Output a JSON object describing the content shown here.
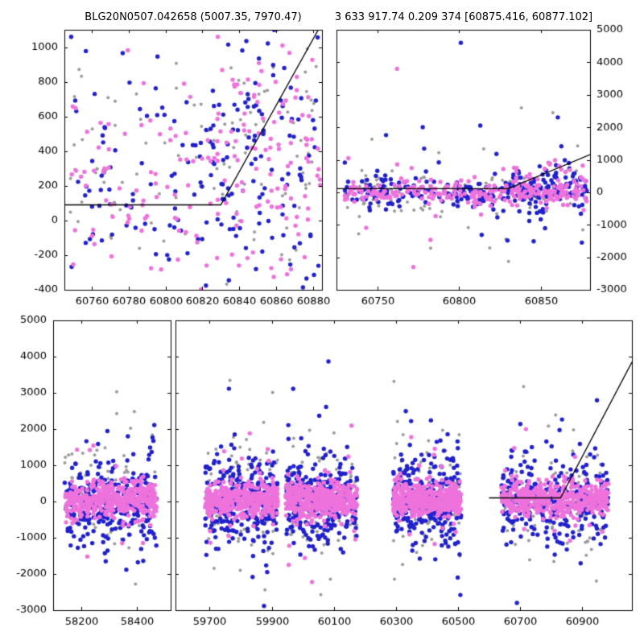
{
  "figure": {
    "background": "#ffffff",
    "colors": {
      "blue": "#2121cc",
      "pink": "#ee72dc",
      "gray": "#9b9b9b",
      "line": "#000000",
      "text": "#000000"
    }
  },
  "chart_data": [
    {
      "id": "top-left",
      "type": "scatter",
      "title": "BLG20N0507.042658 (5007.35, 7970.47)",
      "segments": [
        {
          "xlim": [
            60745,
            60885
          ],
          "xticks": [
            60760,
            60780,
            60800,
            60820,
            60840,
            60860,
            60880
          ]
        }
      ],
      "ylim": [
        -400,
        1100
      ],
      "yticks": [
        -400,
        -200,
        0,
        200,
        400,
        600,
        800,
        1000
      ],
      "yside": "left",
      "seed": 11,
      "clusters": [
        {
          "series": "blue",
          "x": [
            60748,
            60884
          ],
          "n": 150,
          "mean": 200,
          "sigma": 350
        },
        {
          "series": "blue",
          "x": [
            60825,
            60884
          ],
          "n": 45,
          "mean": 550,
          "sigma": 320
        },
        {
          "series": "pink",
          "x": [
            60748,
            60884
          ],
          "n": 150,
          "mean": 220,
          "sigma": 340
        },
        {
          "series": "pink",
          "x": [
            60828,
            60884
          ],
          "n": 45,
          "mean": 580,
          "sigma": 300
        },
        {
          "series": "gray",
          "x": [
            60748,
            60884
          ],
          "n": 85,
          "mean": 250,
          "sigma": 330
        },
        {
          "series": "gray",
          "x": [
            60828,
            60884
          ],
          "n": 22,
          "mean": 600,
          "sigma": 300
        }
      ],
      "outliers": [],
      "fit_line": [
        [
          60745,
          90
        ],
        [
          60830,
          90
        ],
        [
          60884,
          1120
        ]
      ]
    },
    {
      "id": "top-right",
      "type": "scatter",
      "title": "3 633 917.74 0.209 374 [60875.416, 60877.102]",
      "segments": [
        {
          "xlim": [
            60725,
            60880
          ],
          "xticks": [
            60750,
            60800,
            60850
          ]
        }
      ],
      "ylim": [
        -3000,
        5000
      ],
      "yticks": [
        -3000,
        -2000,
        -1000,
        0,
        1000,
        2000,
        3000,
        4000,
        5000
      ],
      "yside": "right",
      "seed": 7,
      "clusters": [
        {
          "series": "blue",
          "x": [
            60730,
            60878
          ],
          "n": 220,
          "mean": 0,
          "sigma": 280,
          "tail_frac": 0.13,
          "tail_sigma": 950
        },
        {
          "series": "pink",
          "x": [
            60730,
            60878
          ],
          "n": 220,
          "mean": 0,
          "sigma": 170,
          "tail_frac": 0.1,
          "tail_sigma": 650
        },
        {
          "series": "gray",
          "x": [
            60730,
            60878
          ],
          "n": 110,
          "mean": 50,
          "sigma": 380,
          "tail_frac": 0.16,
          "tail_sigma": 1100
        },
        {
          "series": "pink",
          "x": [
            60832,
            60878
          ],
          "n": 70,
          "mean": 250,
          "sigma": 260,
          "tail_frac": 0.05,
          "tail_sigma": 700
        },
        {
          "series": "blue",
          "x": [
            60832,
            60878
          ],
          "n": 70,
          "mean": 300,
          "sigma": 330,
          "tail_frac": 0.05,
          "tail_sigma": 800
        }
      ],
      "outliers": [
        {
          "series": "pink",
          "x": 60762,
          "y": 3800
        },
        {
          "series": "blue",
          "x": 60801,
          "y": 4600
        },
        {
          "series": "gray",
          "x": 60838,
          "y": 2600
        },
        {
          "series": "pink",
          "x": 60772,
          "y": -2300
        }
      ],
      "fit_line": [
        [
          60725,
          110
        ],
        [
          60830,
          110
        ],
        [
          60880,
          1160
        ]
      ]
    },
    {
      "id": "bottom",
      "type": "scatter",
      "title": "",
      "segments": [
        {
          "xlim": [
            58100,
            58520
          ],
          "xticks": [
            58200,
            58400
          ]
        },
        {
          "xlim": [
            59590,
            61060
          ],
          "xticks": [
            59700,
            59900,
            60100,
            60300,
            60500,
            60700,
            60900
          ]
        }
      ],
      "ylim": [
        -3000,
        5000
      ],
      "yticks": [
        -3000,
        -2000,
        -1000,
        0,
        1000,
        2000,
        3000,
        4000,
        5000
      ],
      "yside": "left",
      "seed": 1234,
      "clusters": [
        {
          "series": "pink",
          "x": [
            58140,
            58470
          ],
          "n": 450,
          "mean": 60,
          "sigma": 230,
          "tail_frac": 0.06,
          "tail_sigma": 850
        },
        {
          "series": "blue",
          "x": [
            58140,
            58470
          ],
          "n": 300,
          "mean": 0,
          "sigma": 560,
          "tail_frac": 0.15,
          "tail_sigma": 1300
        },
        {
          "series": "gray",
          "x": [
            58140,
            58470
          ],
          "n": 85,
          "mean": 100,
          "sigma": 720,
          "tail_frac": 0.18,
          "tail_sigma": 1500
        },
        {
          "series": "pink",
          "x": [
            59685,
            59920
          ],
          "n": 450,
          "mean": 60,
          "sigma": 230,
          "tail_frac": 0.06,
          "tail_sigma": 850
        },
        {
          "series": "blue",
          "x": [
            59685,
            59920
          ],
          "n": 300,
          "mean": 0,
          "sigma": 560,
          "tail_frac": 0.15,
          "tail_sigma": 1300
        },
        {
          "series": "gray",
          "x": [
            59685,
            59920
          ],
          "n": 85,
          "mean": 100,
          "sigma": 720,
          "tail_frac": 0.18,
          "tail_sigma": 1500
        },
        {
          "series": "pink",
          "x": [
            59945,
            60175
          ],
          "n": 450,
          "mean": 60,
          "sigma": 230,
          "tail_frac": 0.06,
          "tail_sigma": 850
        },
        {
          "series": "blue",
          "x": [
            59945,
            60175
          ],
          "n": 300,
          "mean": 0,
          "sigma": 560,
          "tail_frac": 0.15,
          "tail_sigma": 1300
        },
        {
          "series": "gray",
          "x": [
            59945,
            60175
          ],
          "n": 85,
          "mean": 100,
          "sigma": 720,
          "tail_frac": 0.18,
          "tail_sigma": 1500
        },
        {
          "series": "pink",
          "x": [
            60290,
            60510
          ],
          "n": 450,
          "mean": 60,
          "sigma": 230,
          "tail_frac": 0.06,
          "tail_sigma": 850
        },
        {
          "series": "blue",
          "x": [
            60290,
            60510
          ],
          "n": 300,
          "mean": 0,
          "sigma": 560,
          "tail_frac": 0.15,
          "tail_sigma": 1300
        },
        {
          "series": "gray",
          "x": [
            60290,
            60510
          ],
          "n": 85,
          "mean": 100,
          "sigma": 720,
          "tail_frac": 0.18,
          "tail_sigma": 1500
        },
        {
          "series": "pink",
          "x": [
            60640,
            60985
          ],
          "n": 450,
          "mean": 60,
          "sigma": 230,
          "tail_frac": 0.06,
          "tail_sigma": 850
        },
        {
          "series": "blue",
          "x": [
            60640,
            60985
          ],
          "n": 300,
          "mean": 0,
          "sigma": 560,
          "tail_frac": 0.15,
          "tail_sigma": 1300
        },
        {
          "series": "gray",
          "x": [
            60640,
            60985
          ],
          "n": 85,
          "mean": 100,
          "sigma": 720,
          "tail_frac": 0.18,
          "tail_sigma": 1500
        }
      ],
      "outliers": [],
      "fit_line": [
        [
          60600,
          100
        ],
        [
          60830,
          100
        ],
        [
          61060,
          3850
        ]
      ]
    }
  ]
}
